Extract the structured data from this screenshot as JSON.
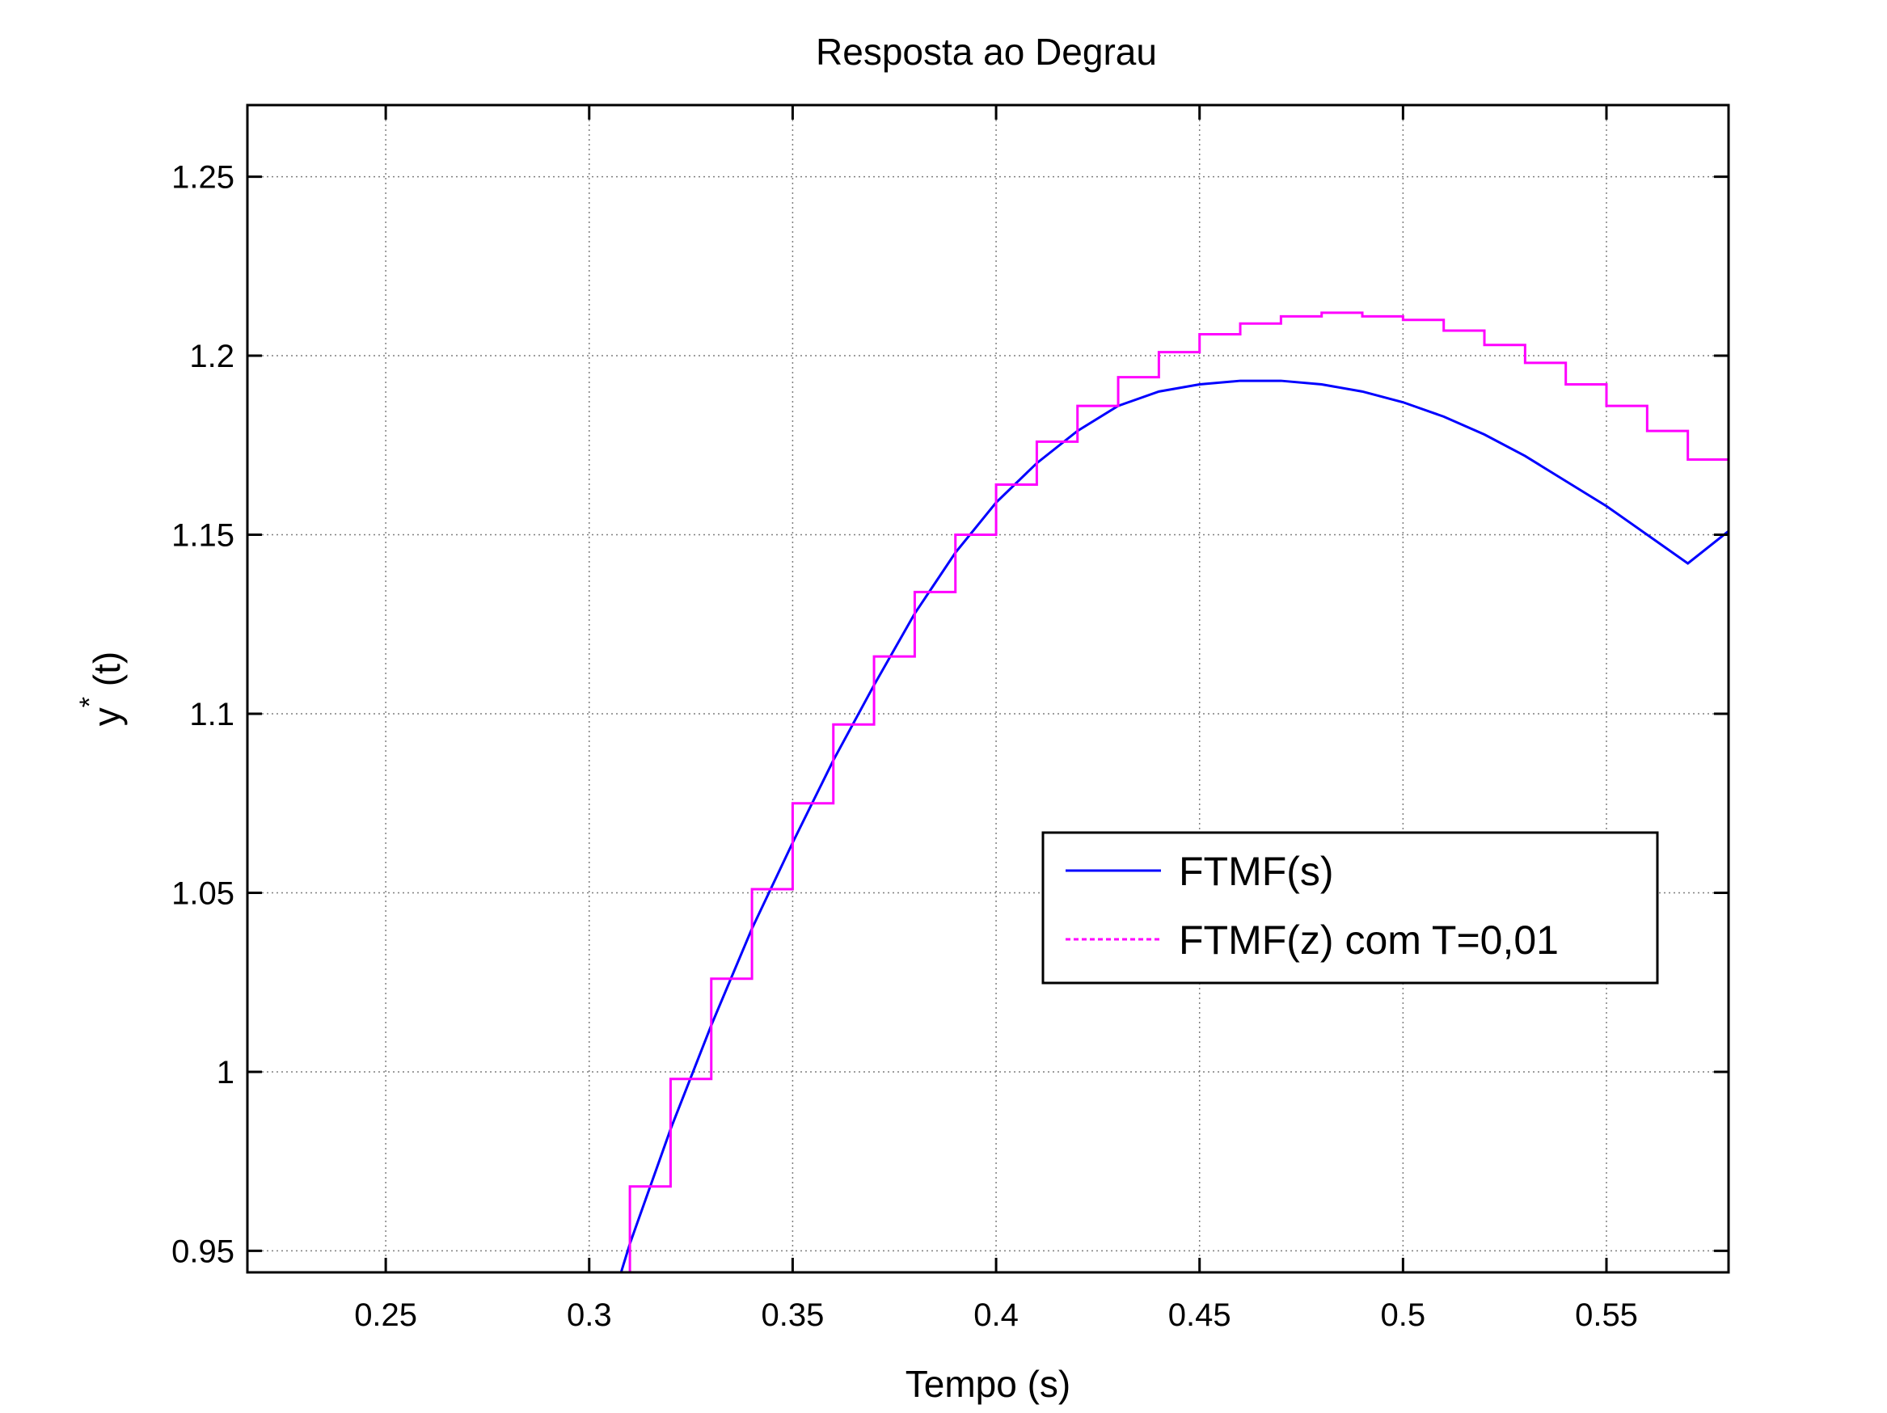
{
  "chart_data": {
    "type": "line",
    "title": "Resposta ao Degrau",
    "xlabel": "Tempo (s)",
    "ylabel": "y (t)",
    "ylabel_superscript": "*",
    "xlim": [
      0.216,
      0.58
    ],
    "ylim": [
      0.944,
      1.27
    ],
    "xticks": [
      0.25,
      0.3,
      0.35,
      0.4,
      0.45,
      0.5,
      0.55
    ],
    "xtick_labels": [
      "0.25",
      "0.3",
      "0.35",
      "0.4",
      "0.45",
      "0.5",
      "0.55"
    ],
    "yticks": [
      0.95,
      1.0,
      1.05,
      1.1,
      1.15,
      1.2,
      1.25
    ],
    "ytick_labels": [
      "0.95",
      "1",
      "1.05",
      "1.1",
      "1.15",
      "1.2",
      "1.25"
    ],
    "grid": true,
    "legend_position": "center-right",
    "series": [
      {
        "name": "FTMF(s)",
        "style": "solid",
        "color": "#0000ff",
        "x": [
          0.3,
          0.31,
          0.32,
          0.33,
          0.34,
          0.35,
          0.36,
          0.37,
          0.38,
          0.39,
          0.4,
          0.41,
          0.42,
          0.43,
          0.44,
          0.45,
          0.46,
          0.47,
          0.48,
          0.49,
          0.5,
          0.51,
          0.52,
          0.53,
          0.54,
          0.55,
          0.56,
          0.57,
          0.58
        ],
        "y": [
          0.915,
          0.952,
          0.984,
          1.013,
          1.04,
          1.064,
          1.087,
          1.108,
          1.128,
          1.145,
          1.159,
          1.17,
          1.179,
          1.186,
          1.19,
          1.192,
          1.193,
          1.193,
          1.192,
          1.19,
          1.187,
          1.183,
          1.178,
          1.172,
          1.165,
          1.158,
          1.15,
          1.142,
          1.151
        ]
      },
      {
        "name": "FTMF(z) com T=0,01",
        "style": "step",
        "color": "#ff00ff",
        "x": [
          0.3,
          0.31,
          0.32,
          0.33,
          0.34,
          0.35,
          0.36,
          0.37,
          0.38,
          0.39,
          0.4,
          0.41,
          0.42,
          0.43,
          0.44,
          0.45,
          0.46,
          0.47,
          0.48,
          0.49,
          0.5,
          0.51,
          0.52,
          0.53,
          0.54,
          0.55,
          0.56,
          0.57,
          0.58
        ],
        "y": [
          0.93,
          0.968,
          0.998,
          1.026,
          1.051,
          1.075,
          1.097,
          1.116,
          1.134,
          1.15,
          1.164,
          1.176,
          1.186,
          1.194,
          1.201,
          1.206,
          1.209,
          1.211,
          1.212,
          1.211,
          1.21,
          1.207,
          1.203,
          1.198,
          1.192,
          1.186,
          1.179,
          1.171,
          1.171
        ]
      }
    ]
  }
}
